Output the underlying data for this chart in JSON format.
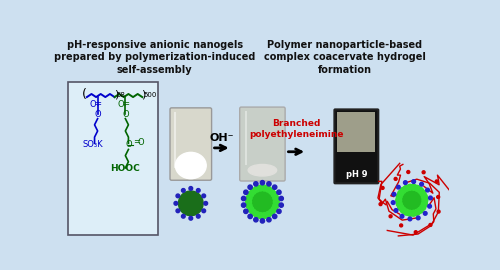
{
  "bg_color": "#cde0f0",
  "title_left": "pH-responsive anionic nanogels\nprepared by polymerization-induced\nself-assembly",
  "title_right": "Polymer nanoparticle-based\ncomplex coacervate hydrogel\nformation",
  "oh_label": "OH⁻",
  "branched_label": "Branched\npolyethyleneimine",
  "ph_label": "pH 9",
  "hooc_label": "HOOC",
  "so3k_label": "SO₃K",
  "o_label": "O",
  "num_58": "58",
  "num_500": "500",
  "blue_color": "#0000cc",
  "green_color": "#006400",
  "bright_green": "#22bb22",
  "red_color": "#cc0000",
  "dark_color": "#111111",
  "box_bg": "#ddeef8",
  "title_fontsize": 7.0,
  "label_fontsize": 6.5
}
